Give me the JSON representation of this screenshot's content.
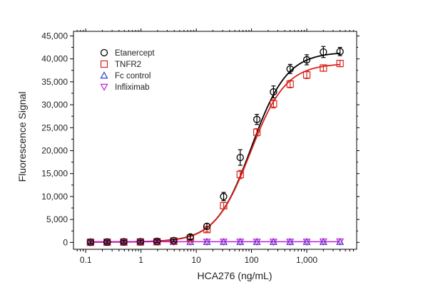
{
  "chart_data": {
    "type": "scatter",
    "xlabel": "HCA276 (ng/mL)",
    "ylabel": "Fluorescence Signal",
    "xscale": "log",
    "xlim": [
      0.06,
      8000
    ],
    "ylim": [
      -1500,
      46000
    ],
    "x_ticks": [
      0.1,
      1,
      10,
      100,
      1000
    ],
    "x_tick_labels": [
      "0.1",
      "1",
      "10",
      "100",
      "1,000"
    ],
    "y_ticks": [
      0,
      5000,
      10000,
      15000,
      20000,
      25000,
      30000,
      35000,
      40000,
      45000
    ],
    "y_tick_labels": [
      "0",
      "5,000",
      "10,000",
      "15,000",
      "20,000",
      "25,000",
      "30,000",
      "35,000",
      "40,000",
      "45,000"
    ],
    "grid": false,
    "legend_position": "top-left",
    "x": [
      0.122,
      0.244,
      0.488,
      0.977,
      1.95,
      3.91,
      7.81,
      15.6,
      31.3,
      62.5,
      125,
      250,
      500,
      1000,
      2000,
      4000
    ],
    "series": [
      {
        "name": "Etanercept",
        "marker": "circle",
        "color": "#000000",
        "values": [
          50,
          80,
          120,
          150,
          250,
          400,
          1200,
          3500,
          10000,
          18500,
          26800,
          32800,
          37800,
          39800,
          41500,
          41600
        ],
        "errors": [
          300,
          300,
          300,
          300,
          300,
          300,
          500,
          600,
          900,
          1700,
          1100,
          1300,
          1000,
          1100,
          1200,
          900
        ],
        "fit": {
          "bottom": 100,
          "top": 41500,
          "ec50": 100,
          "hill": 1.35,
          "color": "#000000"
        }
      },
      {
        "name": "TNFR2",
        "marker": "square",
        "color": "#d9231c",
        "values": [
          30,
          50,
          80,
          100,
          150,
          300,
          900,
          2800,
          8000,
          14800,
          24000,
          30200,
          34500,
          36500,
          38000,
          39000
        ],
        "errors": [
          200,
          200,
          200,
          200,
          200,
          200,
          400,
          500,
          700,
          900,
          800,
          900,
          800,
          800,
          700,
          700
        ],
        "fit": {
          "bottom": 50,
          "top": 39000,
          "ec50": 95,
          "hill": 1.35,
          "color": "#d9231c"
        }
      },
      {
        "name": "Fc control",
        "marker": "triangle-up",
        "color": "#2b3ec4",
        "values": [
          100,
          100,
          100,
          100,
          100,
          100,
          100,
          100,
          100,
          100,
          100,
          100,
          100,
          100,
          100,
          100
        ]
      },
      {
        "name": "Infliximab",
        "marker": "triangle-down",
        "color": "#c21fd6",
        "values": [
          150,
          150,
          150,
          150,
          150,
          150,
          150,
          150,
          150,
          150,
          150,
          150,
          150,
          150,
          200,
          200
        ]
      }
    ],
    "flat_line_color": "#c21fd6",
    "flat_line_value": 150
  }
}
